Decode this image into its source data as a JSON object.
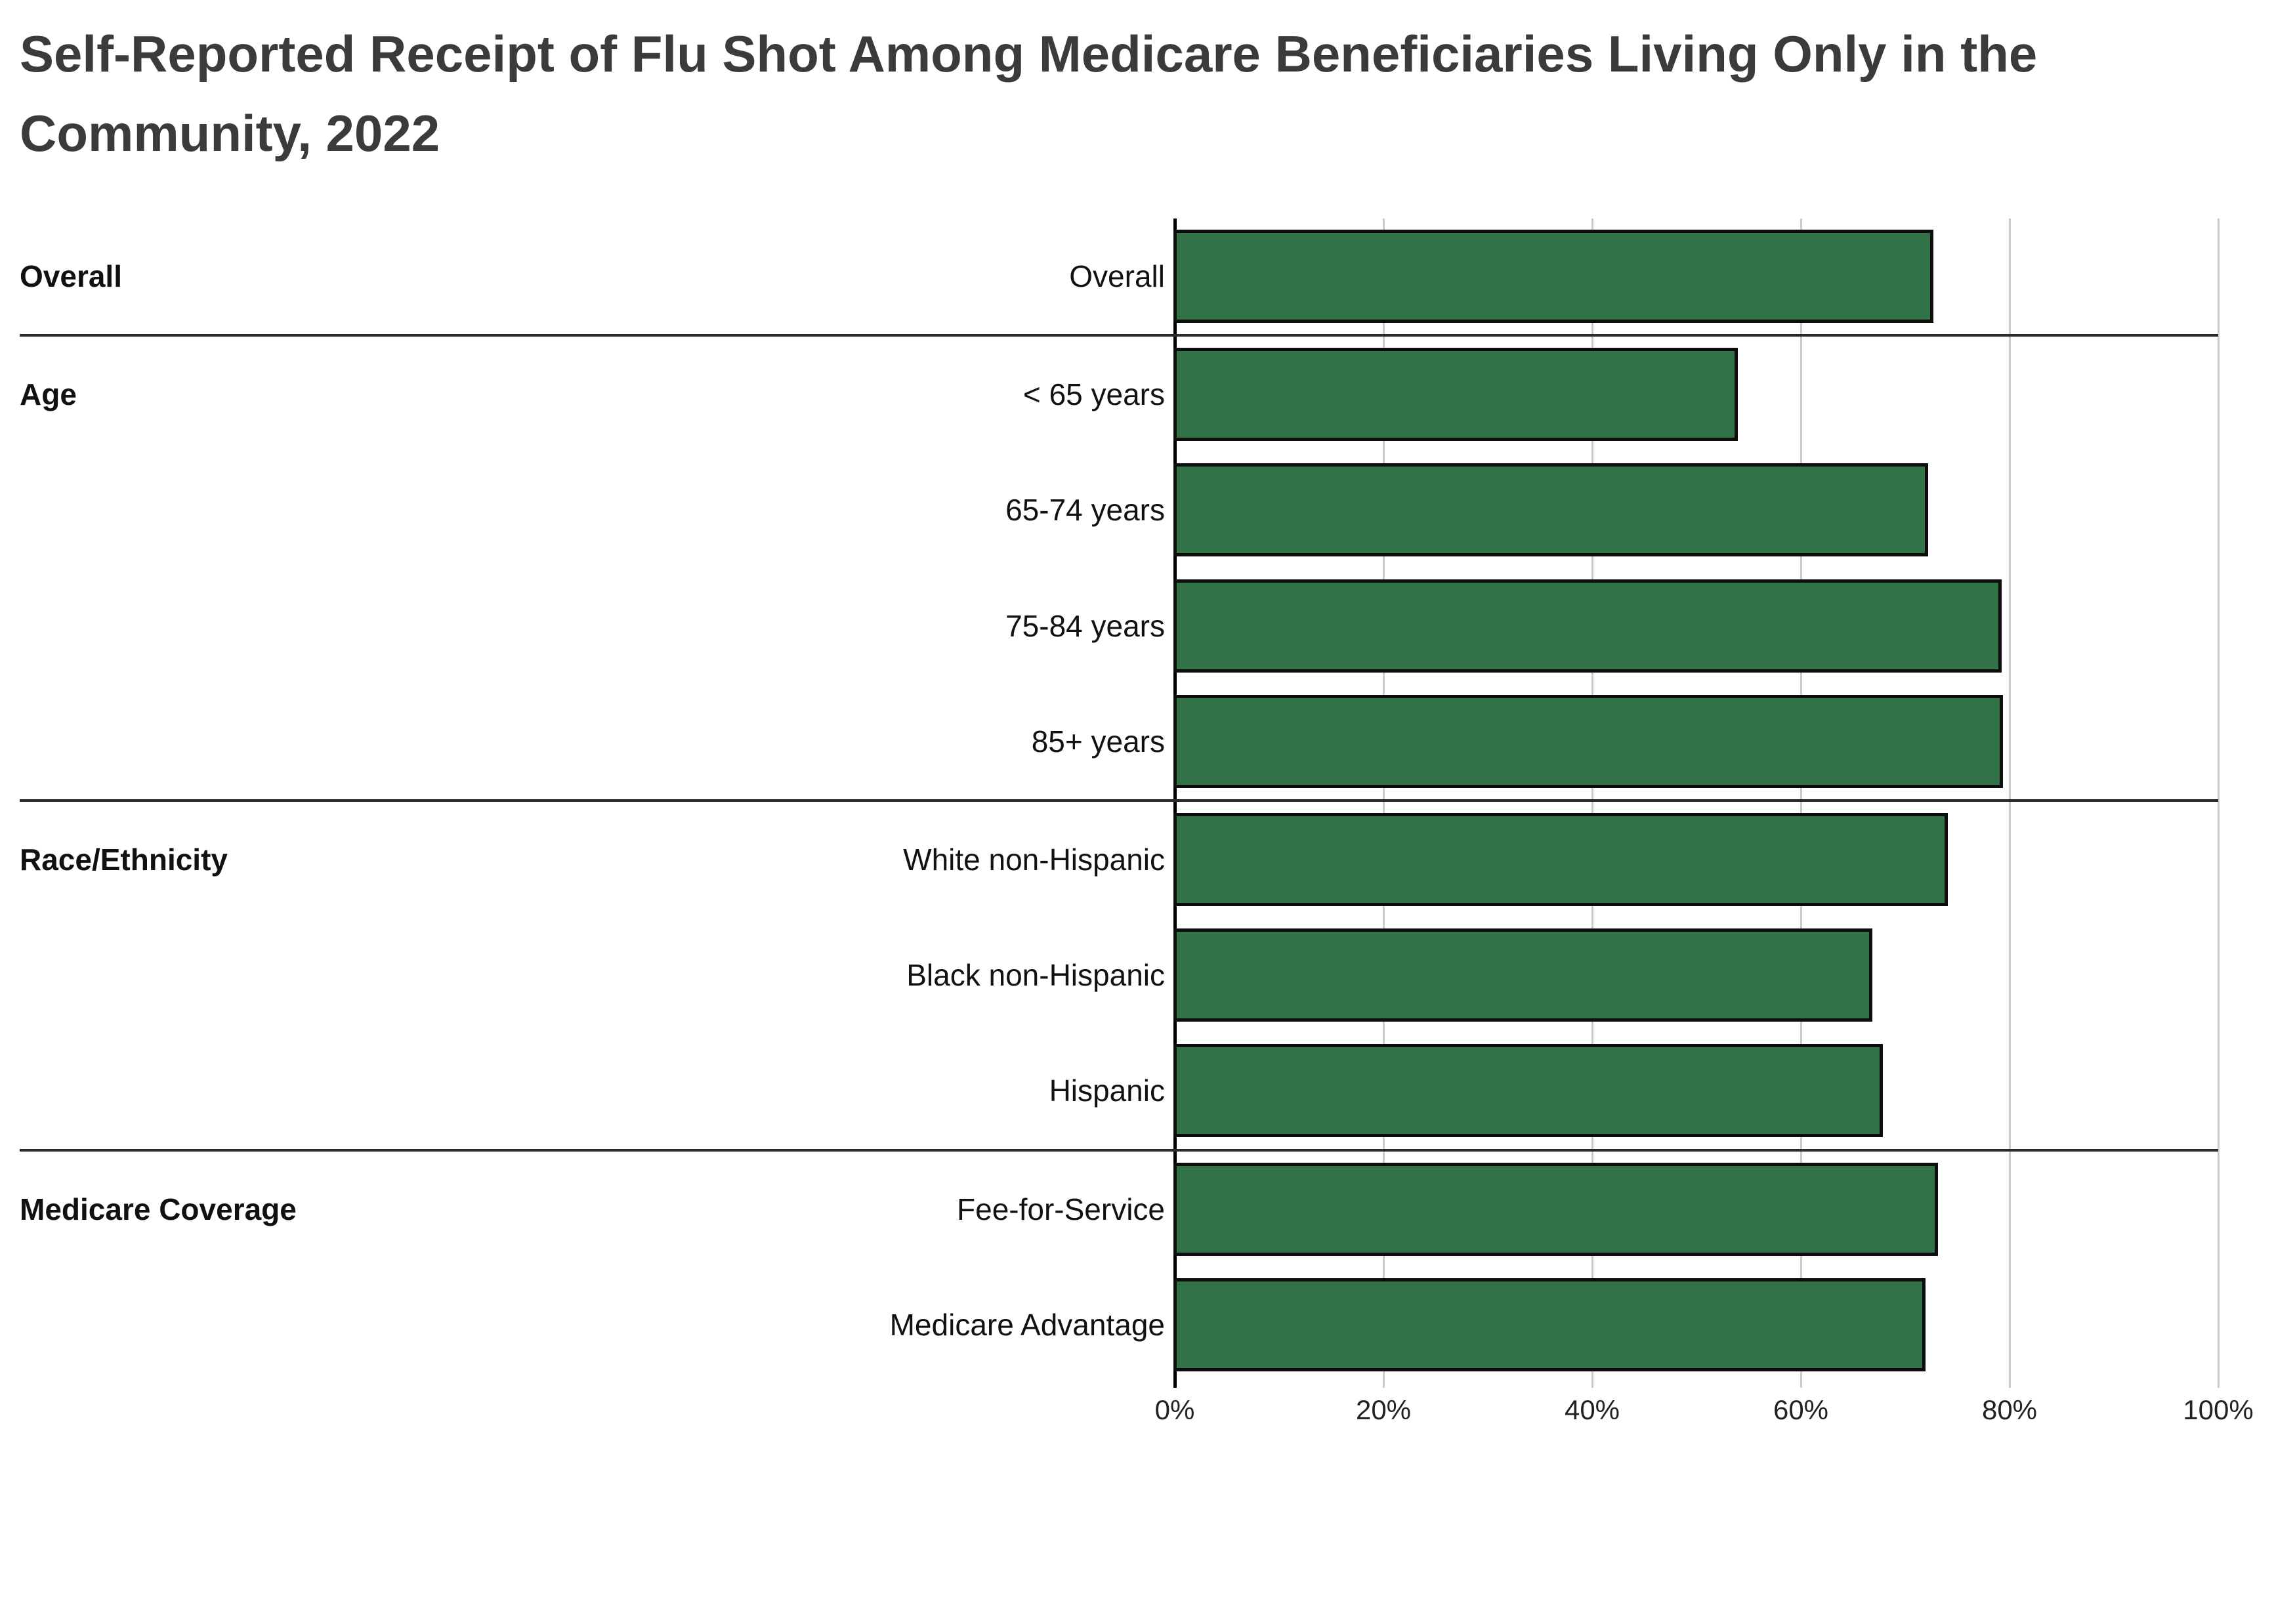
{
  "title": "Self-Reported Receipt of Flu Shot Among Medicare Beneficiaries Living Only in the Community, 2022",
  "chart_data": {
    "type": "bar",
    "orientation": "horizontal",
    "title": "Self-Reported Receipt of Flu Shot Among Medicare Beneficiaries Living Only in the Community, 2022",
    "unit": "%",
    "xlim": [
      0,
      100
    ],
    "x_ticks": [
      "0%",
      "20%",
      "40%",
      "60%",
      "80%",
      "100%"
    ],
    "x_tick_values": [
      0,
      20,
      40,
      60,
      80,
      100
    ],
    "grid": "vertical",
    "legend": "none",
    "bar_color": "#317347",
    "bar_border_color": "#0d0d0d",
    "gridline_color": "#cbcbcb",
    "zero_axis_color": "#000000",
    "separator_color": "#2b2b2b",
    "groups": [
      {
        "label": "Overall",
        "rows": [
          {
            "label": "Overall",
            "value": 72.8
          }
        ]
      },
      {
        "label": "Age",
        "rows": [
          {
            "label": "< 65 years",
            "value": 54.1
          },
          {
            "label": "65-74 years",
            "value": 72.3
          },
          {
            "label": "75-84 years",
            "value": 79.4
          },
          {
            "label": "85+ years",
            "value": 79.5
          }
        ]
      },
      {
        "label": "Race/Ethnicity",
        "rows": [
          {
            "label": "White non-Hispanic",
            "value": 74.2
          },
          {
            "label": "Black non-Hispanic",
            "value": 67.0
          },
          {
            "label": "Hispanic",
            "value": 68.0
          }
        ]
      },
      {
        "label": "Medicare Coverage",
        "rows": [
          {
            "label": "Fee-for-Service",
            "value": 73.3
          },
          {
            "label": "Medicare Advantage",
            "value": 72.1
          }
        ]
      }
    ]
  }
}
